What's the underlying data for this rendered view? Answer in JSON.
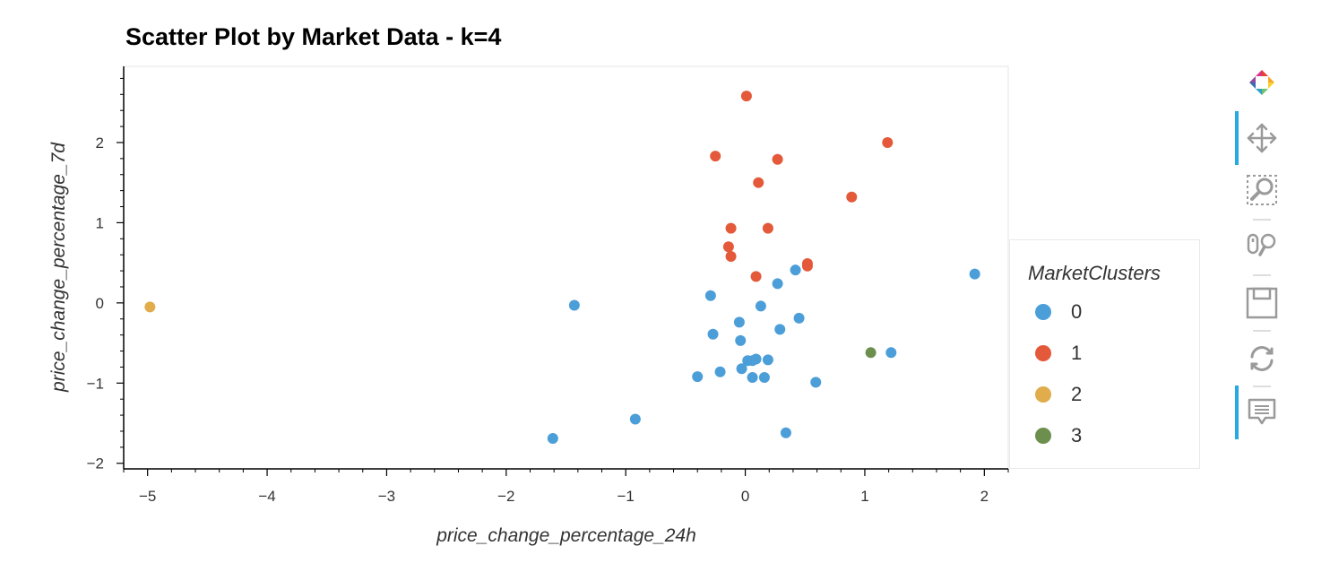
{
  "chart_data": {
    "type": "scatter",
    "title": "Scatter Plot by Market Data - k=4",
    "xlabel": "price_change_percentage_24h",
    "ylabel": "price_change_percentage_7d",
    "xlim": [
      -5.2,
      2.2
    ],
    "ylim": [
      -2.07,
      2.95
    ],
    "x_ticks": [
      -5,
      -4,
      -3,
      -2,
      -1,
      0,
      1,
      2
    ],
    "y_ticks": [
      -2,
      -1,
      0,
      1,
      2
    ],
    "x_tick_labels": [
      "−5",
      "−4",
      "−3",
      "−2",
      "−1",
      "0",
      "1",
      "2"
    ],
    "y_tick_labels": [
      "−2",
      "−1",
      "0",
      "1",
      "2"
    ],
    "grid": false,
    "legend_position": "right",
    "legend_title": "MarketClusters",
    "series": [
      {
        "name": "0",
        "color": "#4c9ed9",
        "points": [
          [
            -1.43,
            -0.03
          ],
          [
            -0.29,
            0.09
          ],
          [
            -0.27,
            -0.39
          ],
          [
            -0.05,
            -0.24
          ],
          [
            -0.04,
            -0.47
          ],
          [
            0.13,
            -0.04
          ],
          [
            0.27,
            0.24
          ],
          [
            0.42,
            0.41
          ],
          [
            0.45,
            -0.19
          ],
          [
            0.29,
            -0.33
          ],
          [
            0.02,
            -0.72
          ],
          [
            0.06,
            -0.72
          ],
          [
            0.09,
            -0.7
          ],
          [
            0.19,
            -0.71
          ],
          [
            -0.03,
            -0.82
          ],
          [
            -0.21,
            -0.86
          ],
          [
            -0.4,
            -0.92
          ],
          [
            0.06,
            -0.93
          ],
          [
            0.16,
            -0.93
          ],
          [
            0.59,
            -0.99
          ],
          [
            -0.92,
            -1.45
          ],
          [
            -1.61,
            -1.69
          ],
          [
            0.34,
            -1.62
          ],
          [
            1.22,
            -0.62
          ],
          [
            1.92,
            0.36
          ]
        ]
      },
      {
        "name": "1",
        "color": "#e4593a",
        "points": [
          [
            0.01,
            2.58
          ],
          [
            -0.25,
            1.83
          ],
          [
            0.27,
            1.79
          ],
          [
            1.19,
            2.0
          ],
          [
            0.11,
            1.5
          ],
          [
            0.89,
            1.32
          ],
          [
            -0.12,
            0.93
          ],
          [
            0.19,
            0.93
          ],
          [
            -0.14,
            0.7
          ],
          [
            -0.12,
            0.58
          ],
          [
            0.09,
            0.33
          ],
          [
            0.52,
            0.49
          ],
          [
            0.52,
            0.46
          ]
        ]
      },
      {
        "name": "2",
        "color": "#e0ac4c",
        "points": [
          [
            -4.98,
            -0.05
          ]
        ]
      },
      {
        "name": "3",
        "color": "#6d8f4e",
        "points": [
          [
            1.05,
            -0.62
          ]
        ]
      }
    ]
  },
  "toolbar": {
    "tools": [
      {
        "icon": "bokeh-logo-icon",
        "active": false
      },
      {
        "icon": "pan-icon",
        "active": true
      },
      {
        "icon": "box-zoom-icon",
        "active": false
      },
      {
        "icon": "wheel-zoom-icon",
        "active": false
      },
      {
        "icon": "save-icon",
        "active": false
      },
      {
        "icon": "reset-icon",
        "active": false
      },
      {
        "icon": "hover-icon",
        "active": true
      }
    ]
  }
}
